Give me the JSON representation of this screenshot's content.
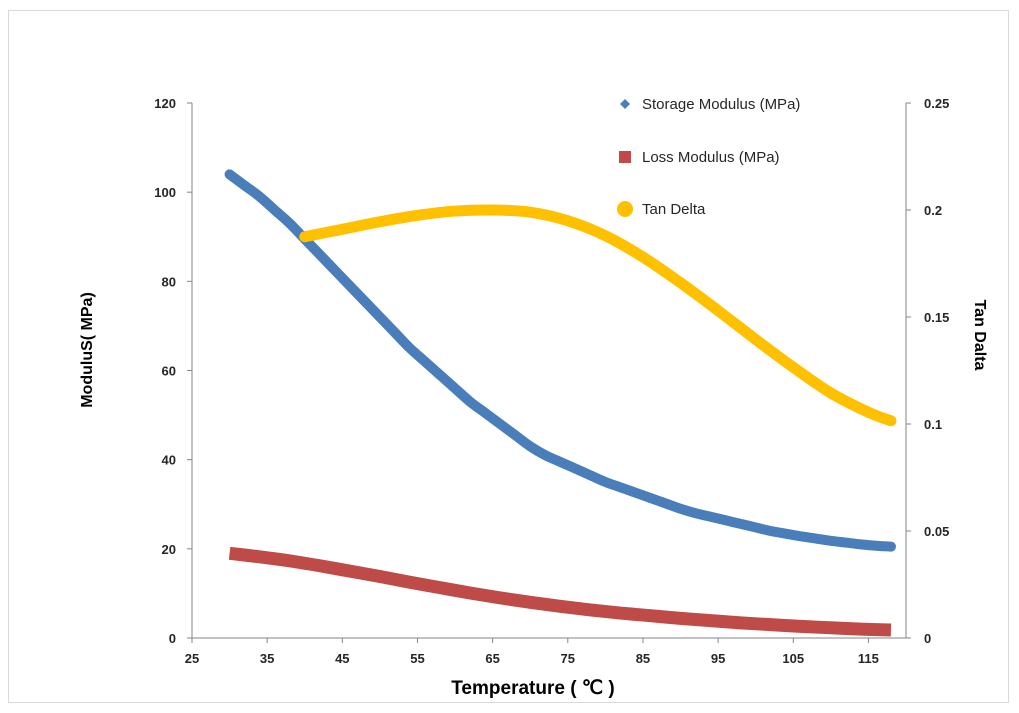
{
  "chart_data": {
    "type": "line",
    "xlabel": "Temperature ( ℃ )",
    "ylabel": "ModuluS( MPa)",
    "y2label": "Tan Dalta",
    "xlim": [
      25,
      120
    ],
    "ylim": [
      0,
      120
    ],
    "y2lim": [
      0,
      0.25
    ],
    "x_ticks": [
      25,
      35,
      45,
      55,
      65,
      75,
      85,
      95,
      105,
      115
    ],
    "y_ticks": [
      0,
      20,
      40,
      60,
      80,
      100,
      120
    ],
    "y2_ticks": [
      0,
      0.05,
      0.1,
      0.15,
      0.2,
      0.25
    ],
    "y2_tick_labels": [
      "0",
      "0.05",
      "0.1",
      "0.15",
      "0.2",
      "0.25"
    ],
    "grid": false,
    "legend_position": "top-right",
    "series": [
      {
        "name": "Storage Modulus (MPa)",
        "axis": "left",
        "color": "#4a7ebb",
        "marker": "diamond",
        "x": [
          30,
          32,
          34,
          36,
          38,
          40,
          42,
          44,
          46,
          48,
          50,
          52,
          54,
          56,
          58,
          60,
          62,
          64,
          66,
          68,
          70,
          72,
          74,
          76,
          78,
          80,
          82,
          84,
          86,
          88,
          90,
          92,
          94,
          96,
          98,
          100,
          102,
          104,
          106,
          108,
          110,
          112,
          114,
          116,
          118
        ],
        "values": [
          104,
          101.5,
          99,
          96,
          93,
          89.5,
          86,
          82.5,
          79,
          75.5,
          72,
          68.5,
          65,
          62,
          59,
          56,
          53,
          50.5,
          48,
          45.5,
          43,
          41,
          39.5,
          38,
          36.5,
          35,
          33.8,
          32.6,
          31.4,
          30.2,
          29,
          28,
          27.2,
          26.4,
          25.6,
          24.8,
          24,
          23.4,
          22.8,
          22.3,
          21.8,
          21.4,
          21,
          20.7,
          20.5
        ]
      },
      {
        "name": "Loss Modulus (MPa)",
        "axis": "left",
        "color": "#be4b48",
        "marker": "square",
        "x": [
          30,
          34,
          38,
          42,
          46,
          50,
          54,
          58,
          62,
          66,
          70,
          74,
          78,
          82,
          86,
          90,
          94,
          98,
          102,
          106,
          110,
          114,
          118
        ],
        "values": [
          19,
          18.2,
          17.3,
          16.2,
          15,
          13.8,
          12.5,
          11.3,
          10.1,
          9,
          8,
          7.1,
          6.3,
          5.6,
          5,
          4.4,
          3.9,
          3.4,
          3,
          2.6,
          2.3,
          2,
          1.8
        ]
      },
      {
        "name": "Tan Delta",
        "axis": "right",
        "color": "#ffc000",
        "marker": "circle",
        "x": [
          40,
          45,
          50,
          55,
          60,
          65,
          70,
          75,
          80,
          85,
          90,
          95,
          100,
          105,
          110,
          115,
          118
        ],
        "values": [
          0.1875,
          0.191,
          0.1945,
          0.1975,
          0.1995,
          0.2,
          0.199,
          0.195,
          0.188,
          0.178,
          0.166,
          0.153,
          0.1395,
          0.1265,
          0.1145,
          0.1055,
          0.1015
        ]
      }
    ]
  }
}
